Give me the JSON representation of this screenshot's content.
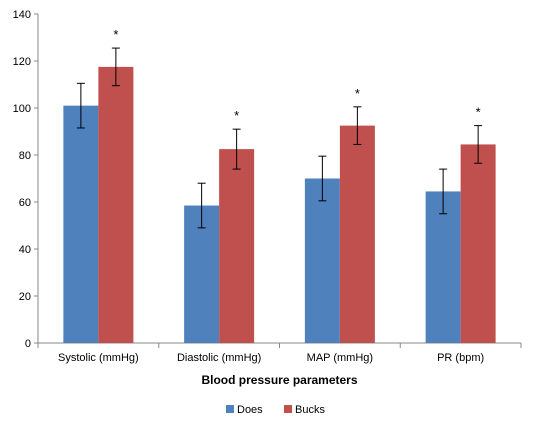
{
  "chart_data": {
    "type": "bar",
    "xlabel": "Blood pressure parameters",
    "ylabel": "",
    "ylim": [
      0,
      140
    ],
    "yticks": [
      0,
      20,
      40,
      60,
      80,
      100,
      120,
      140
    ],
    "categories": [
      "Systolic (mmHg)",
      "Diastolic (mmHg)",
      "MAP (mmHg)",
      "PR (bpm)"
    ],
    "series": [
      {
        "name": "Does",
        "color": "#4F81BD",
        "values": [
          101,
          58.5,
          70,
          64.5
        ],
        "errors": [
          9.5,
          9.5,
          9.5,
          9.5
        ]
      },
      {
        "name": "Bucks",
        "color": "#C0504D",
        "values": [
          117.5,
          82.5,
          92.5,
          84.5
        ],
        "errors": [
          8,
          8.5,
          8,
          8
        ]
      }
    ],
    "annotations": {
      "significance_marker": "*",
      "on_series": "Bucks",
      "categories": [
        "Systolic (mmHg)",
        "Diastolic (mmHg)",
        "MAP (mmHg)",
        "PR (bpm)"
      ]
    },
    "grid": false,
    "legend_position": "bottom"
  }
}
